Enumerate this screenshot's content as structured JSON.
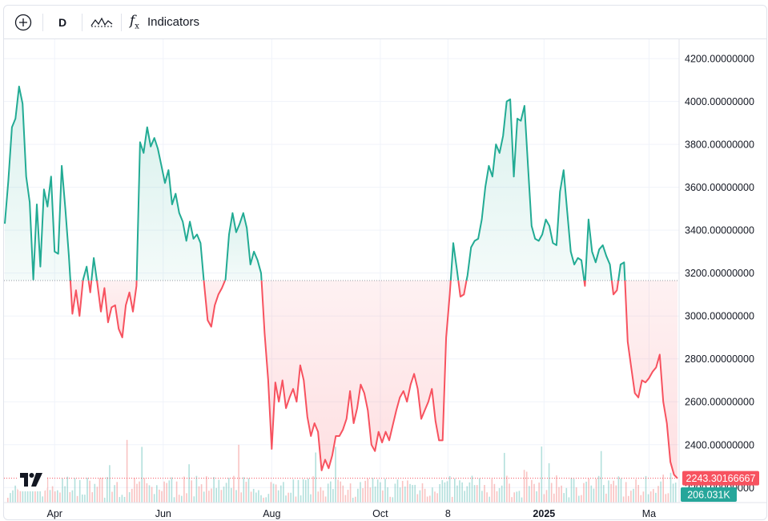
{
  "toolbar": {
    "add_icon": "plus-circle-icon",
    "interval_label": "D",
    "chart_style_icon": "line-chart-icon",
    "indicators_icon": "function-icon",
    "indicators_label": "Indicators"
  },
  "watermark": {
    "icon": "tradingview-logo-icon"
  },
  "colors": {
    "up": "#22ab94",
    "down": "#f7525f",
    "grid": "#f0f3fa",
    "axis_text": "#131722",
    "volume_badge": "#26a69a"
  },
  "price_badge": "2243.30166667",
  "volume_badge": "206.031K",
  "chart_data": {
    "type": "area",
    "baseline": 3165,
    "ylim": [
      2130,
      4290
    ],
    "y_ticks": [
      "4200.00000000",
      "4000.00000000",
      "3800.00000000",
      "3600.00000000",
      "3400.00000000",
      "3200.00000000",
      "3000.00000000",
      "2800.00000000",
      "2600.00000000",
      "2400.00000000",
      "2200.00000000"
    ],
    "x_ticks": [
      {
        "label": "Apr",
        "date": "2024-04-01",
        "bold": false
      },
      {
        "label": "Jun",
        "date": "2024-06-01",
        "bold": false
      },
      {
        "label": "Aug",
        "date": "2024-08-01",
        "bold": false
      },
      {
        "label": "Oct",
        "date": "2024-10-01",
        "bold": false
      },
      {
        "label": "8",
        "date": "2024-11-08",
        "bold": false
      },
      {
        "label": "2025",
        "date": "2025-01-01",
        "bold": true
      },
      {
        "label": "Ma",
        "date": "2025-03-01",
        "bold": false
      }
    ],
    "series": [
      {
        "values": [
          [
            "2024-03-04",
            3430
          ],
          [
            "2024-03-06",
            3630
          ],
          [
            "2024-03-08",
            3880
          ],
          [
            "2024-03-10",
            3920
          ],
          [
            "2024-03-12",
            4070
          ],
          [
            "2024-03-14",
            3990
          ],
          [
            "2024-03-16",
            3650
          ],
          [
            "2024-03-18",
            3530
          ],
          [
            "2024-03-20",
            3170
          ],
          [
            "2024-03-22",
            3520
          ],
          [
            "2024-03-24",
            3230
          ],
          [
            "2024-03-26",
            3590
          ],
          [
            "2024-03-28",
            3510
          ],
          [
            "2024-03-30",
            3650
          ],
          [
            "2024-04-01",
            3300
          ],
          [
            "2024-04-03",
            3290
          ],
          [
            "2024-04-05",
            3700
          ],
          [
            "2024-04-07",
            3500
          ],
          [
            "2024-04-09",
            3280
          ],
          [
            "2024-04-11",
            3010
          ],
          [
            "2024-04-13",
            3120
          ],
          [
            "2024-04-15",
            3000
          ],
          [
            "2024-04-17",
            3170
          ],
          [
            "2024-04-19",
            3230
          ],
          [
            "2024-04-21",
            3110
          ],
          [
            "2024-04-23",
            3270
          ],
          [
            "2024-04-25",
            3150
          ],
          [
            "2024-04-27",
            3020
          ],
          [
            "2024-04-29",
            3130
          ],
          [
            "2024-05-01",
            2970
          ],
          [
            "2024-05-03",
            3040
          ],
          [
            "2024-05-05",
            3050
          ],
          [
            "2024-05-07",
            2940
          ],
          [
            "2024-05-09",
            2900
          ],
          [
            "2024-05-11",
            3050
          ],
          [
            "2024-05-13",
            3110
          ],
          [
            "2024-05-15",
            3020
          ],
          [
            "2024-05-17",
            3140
          ],
          [
            "2024-05-19",
            3810
          ],
          [
            "2024-05-21",
            3760
          ],
          [
            "2024-05-23",
            3880
          ],
          [
            "2024-05-25",
            3790
          ],
          [
            "2024-05-27",
            3830
          ],
          [
            "2024-05-29",
            3780
          ],
          [
            "2024-05-31",
            3700
          ],
          [
            "2024-06-02",
            3620
          ],
          [
            "2024-06-04",
            3680
          ],
          [
            "2024-06-06",
            3520
          ],
          [
            "2024-06-08",
            3570
          ],
          [
            "2024-06-10",
            3480
          ],
          [
            "2024-06-12",
            3440
          ],
          [
            "2024-06-14",
            3350
          ],
          [
            "2024-06-16",
            3440
          ],
          [
            "2024-06-18",
            3360
          ],
          [
            "2024-06-20",
            3380
          ],
          [
            "2024-06-22",
            3340
          ],
          [
            "2024-06-24",
            3150
          ],
          [
            "2024-06-26",
            2980
          ],
          [
            "2024-06-28",
            2950
          ],
          [
            "2024-06-30",
            3050
          ],
          [
            "2024-07-02",
            3100
          ],
          [
            "2024-07-04",
            3130
          ],
          [
            "2024-07-06",
            3170
          ],
          [
            "2024-07-08",
            3380
          ],
          [
            "2024-07-10",
            3480
          ],
          [
            "2024-07-12",
            3390
          ],
          [
            "2024-07-14",
            3430
          ],
          [
            "2024-07-16",
            3480
          ],
          [
            "2024-07-18",
            3410
          ],
          [
            "2024-07-20",
            3240
          ],
          [
            "2024-07-22",
            3300
          ],
          [
            "2024-07-24",
            3260
          ],
          [
            "2024-07-26",
            3200
          ],
          [
            "2024-07-28",
            2920
          ],
          [
            "2024-07-30",
            2700
          ],
          [
            "2024-08-01",
            2380
          ],
          [
            "2024-08-03",
            2690
          ],
          [
            "2024-08-05",
            2600
          ],
          [
            "2024-08-07",
            2700
          ],
          [
            "2024-08-09",
            2570
          ],
          [
            "2024-08-11",
            2620
          ],
          [
            "2024-08-13",
            2660
          ],
          [
            "2024-08-15",
            2600
          ],
          [
            "2024-08-17",
            2770
          ],
          [
            "2024-08-19",
            2700
          ],
          [
            "2024-08-21",
            2530
          ],
          [
            "2024-08-23",
            2440
          ],
          [
            "2024-08-25",
            2500
          ],
          [
            "2024-08-27",
            2460
          ],
          [
            "2024-08-29",
            2280
          ],
          [
            "2024-08-31",
            2330
          ],
          [
            "2024-09-02",
            2290
          ],
          [
            "2024-09-04",
            2350
          ],
          [
            "2024-09-06",
            2440
          ],
          [
            "2024-09-08",
            2440
          ],
          [
            "2024-09-10",
            2470
          ],
          [
            "2024-09-12",
            2520
          ],
          [
            "2024-09-14",
            2650
          ],
          [
            "2024-09-16",
            2500
          ],
          [
            "2024-09-18",
            2570
          ],
          [
            "2024-09-20",
            2680
          ],
          [
            "2024-09-22",
            2640
          ],
          [
            "2024-09-24",
            2560
          ],
          [
            "2024-09-26",
            2400
          ],
          [
            "2024-09-28",
            2370
          ],
          [
            "2024-09-30",
            2460
          ],
          [
            "2024-10-02",
            2410
          ],
          [
            "2024-10-04",
            2460
          ],
          [
            "2024-10-06",
            2420
          ],
          [
            "2024-10-08",
            2490
          ],
          [
            "2024-10-10",
            2560
          ],
          [
            "2024-10-12",
            2620
          ],
          [
            "2024-10-14",
            2650
          ],
          [
            "2024-10-16",
            2600
          ],
          [
            "2024-10-18",
            2680
          ],
          [
            "2024-10-20",
            2730
          ],
          [
            "2024-10-22",
            2660
          ],
          [
            "2024-10-24",
            2520
          ],
          [
            "2024-10-26",
            2560
          ],
          [
            "2024-10-28",
            2600
          ],
          [
            "2024-10-30",
            2660
          ],
          [
            "2024-11-01",
            2510
          ],
          [
            "2024-11-03",
            2420
          ],
          [
            "2024-11-05",
            2420
          ],
          [
            "2024-11-07",
            2900
          ],
          [
            "2024-11-09",
            3100
          ],
          [
            "2024-11-11",
            3340
          ],
          [
            "2024-11-13",
            3220
          ],
          [
            "2024-11-15",
            3090
          ],
          [
            "2024-11-17",
            3100
          ],
          [
            "2024-11-19",
            3190
          ],
          [
            "2024-11-21",
            3320
          ],
          [
            "2024-11-23",
            3350
          ],
          [
            "2024-11-25",
            3360
          ],
          [
            "2024-11-27",
            3450
          ],
          [
            "2024-11-29",
            3600
          ],
          [
            "2024-12-01",
            3700
          ],
          [
            "2024-12-03",
            3650
          ],
          [
            "2024-12-05",
            3800
          ],
          [
            "2024-12-07",
            3760
          ],
          [
            "2024-12-09",
            3840
          ],
          [
            "2024-12-11",
            4000
          ],
          [
            "2024-12-13",
            4010
          ],
          [
            "2024-12-15",
            3650
          ],
          [
            "2024-12-17",
            3920
          ],
          [
            "2024-12-19",
            3910
          ],
          [
            "2024-12-21",
            3980
          ],
          [
            "2024-12-23",
            3700
          ],
          [
            "2024-12-25",
            3420
          ],
          [
            "2024-12-27",
            3360
          ],
          [
            "2024-12-29",
            3350
          ],
          [
            "2024-12-31",
            3380
          ],
          [
            "2025-01-02",
            3450
          ],
          [
            "2025-01-04",
            3420
          ],
          [
            "2025-01-06",
            3340
          ],
          [
            "2025-01-08",
            3330
          ],
          [
            "2025-01-10",
            3580
          ],
          [
            "2025-01-12",
            3680
          ],
          [
            "2025-01-14",
            3490
          ],
          [
            "2025-01-16",
            3300
          ],
          [
            "2025-01-18",
            3240
          ],
          [
            "2025-01-20",
            3270
          ],
          [
            "2025-01-22",
            3260
          ],
          [
            "2025-01-24",
            3140
          ],
          [
            "2025-01-26",
            3450
          ],
          [
            "2025-01-28",
            3300
          ],
          [
            "2025-01-30",
            3250
          ],
          [
            "2025-02-01",
            3310
          ],
          [
            "2025-02-03",
            3330
          ],
          [
            "2025-02-05",
            3280
          ],
          [
            "2025-02-07",
            3240
          ],
          [
            "2025-02-09",
            3100
          ],
          [
            "2025-02-11",
            3120
          ],
          [
            "2025-02-13",
            3240
          ],
          [
            "2025-02-15",
            3250
          ],
          [
            "2025-02-17",
            2880
          ],
          [
            "2025-02-19",
            2760
          ],
          [
            "2025-02-21",
            2640
          ],
          [
            "2025-02-23",
            2620
          ],
          [
            "2025-02-25",
            2700
          ],
          [
            "2025-02-27",
            2690
          ],
          [
            "2025-03-01",
            2710
          ],
          [
            "2025-03-03",
            2740
          ],
          [
            "2025-03-05",
            2760
          ],
          [
            "2025-03-07",
            2820
          ],
          [
            "2025-03-09",
            2600
          ],
          [
            "2025-03-11",
            2500
          ],
          [
            "2025-03-13",
            2320
          ],
          [
            "2025-03-15",
            2260
          ],
          [
            "2025-03-17",
            2243
          ]
        ]
      }
    ]
  }
}
